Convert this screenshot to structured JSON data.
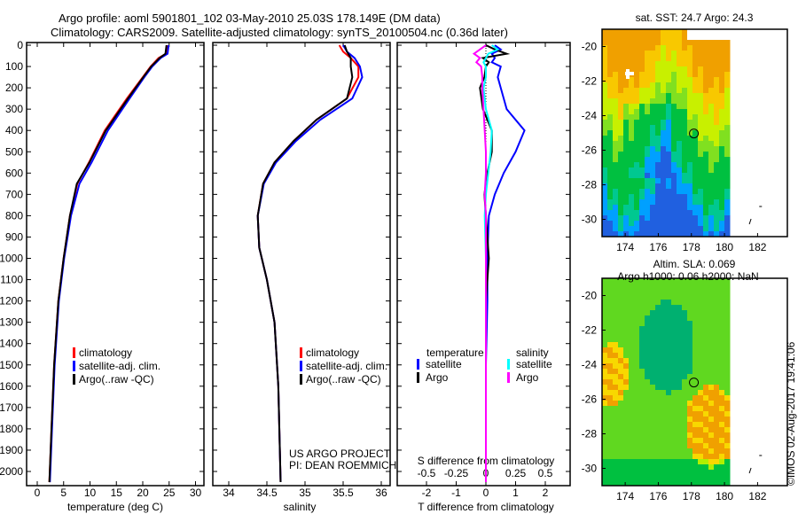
{
  "title": {
    "line1": "Argo profile: aoml 5901801_102 03-May-2010 25.03S 178.149E (DM data)",
    "line2": "Climatology: CARS2009. Satellite-adjusted climatology: synTS_20100504.nc (0.36d later)"
  },
  "colors": {
    "climatology": "#ff0000",
    "satellite": "#0000ff",
    "argo": "#000000",
    "sal_satellite": "#00ffff",
    "sal_argo": "#ff00ff"
  },
  "chart_data": [
    {
      "type": "line",
      "name": "temperature-profile",
      "xlabel": "temperature (deg C)",
      "ylabel": "",
      "xlim": [
        -2,
        32
      ],
      "ylim": [
        2050,
        0
      ],
      "xticks": [
        "0",
        "5",
        "10",
        "15",
        "20",
        "25",
        "30"
      ],
      "yticks": [
        "0",
        "100",
        "200",
        "300",
        "400",
        "500",
        "600",
        "700",
        "800",
        "900",
        "1000",
        "1100",
        "1200",
        "1300",
        "1400",
        "1500",
        "1600",
        "1700",
        "1800",
        "1900",
        "2000"
      ],
      "depth": [
        0,
        40,
        60,
        100,
        150,
        250,
        400,
        550,
        650,
        800,
        1000,
        1200,
        1500,
        1800,
        2050
      ],
      "series": [
        {
          "name": "climatology",
          "values": [
            24.6,
            24.4,
            23.0,
            21.5,
            20.0,
            17.0,
            12.8,
            9.8,
            7.6,
            6.2,
            5.0,
            4.0,
            3.2,
            2.7,
            2.3
          ]
        },
        {
          "name": "satellite-adj. clim.",
          "values": [
            24.9,
            24.7,
            23.4,
            21.8,
            20.3,
            17.5,
            13.4,
            10.3,
            8.0,
            6.4,
            5.1,
            4.1,
            3.3,
            2.8,
            2.4
          ]
        },
        {
          "name": "Argo(..raw -QC)",
          "values": [
            24.5,
            24.3,
            23.2,
            21.6,
            20.1,
            17.2,
            13.0,
            9.9,
            7.5,
            6.2,
            5.0,
            4.0,
            3.2,
            2.7,
            2.3
          ]
        }
      ],
      "legend": [
        "climatology",
        "satellite-adj. clim.",
        "Argo(..raw -QC)"
      ],
      "legend_placement": "center-right"
    },
    {
      "type": "line",
      "name": "salinity-profile",
      "xlabel": "salinity",
      "xlim": [
        33.7,
        36.2
      ],
      "ylim": [
        2050,
        0
      ],
      "xticks": [
        "34",
        "34.5",
        "35",
        "35.5",
        "36"
      ],
      "depth": [
        0,
        30,
        60,
        100,
        150,
        250,
        350,
        450,
        550,
        650,
        800,
        950,
        1100,
        1300,
        1600,
        2050
      ],
      "series": [
        {
          "name": "climatology",
          "values": [
            35.45,
            35.5,
            35.6,
            35.7,
            35.7,
            35.55,
            35.15,
            34.85,
            34.6,
            34.45,
            34.38,
            34.4,
            34.5,
            34.6,
            34.65,
            34.68
          ]
        },
        {
          "name": "satellite-adj. clim.",
          "values": [
            35.5,
            35.55,
            35.65,
            35.72,
            35.75,
            35.62,
            35.2,
            34.88,
            34.62,
            34.46,
            34.38,
            34.4,
            34.5,
            34.6,
            34.65,
            34.68
          ]
        },
        {
          "name": "Argo(..raw -QC)",
          "values": [
            35.52,
            35.55,
            35.6,
            35.6,
            35.62,
            35.55,
            35.15,
            34.85,
            34.6,
            34.45,
            34.38,
            34.4,
            34.5,
            34.6,
            34.65,
            34.68
          ]
        }
      ],
      "legend": [
        "climatology",
        "satellite-adj. clim.",
        "Argo(..raw -QC)"
      ],
      "annotation": [
        "US ARGO PROJECT",
        "PI: DEAN ROEMMICH"
      ]
    },
    {
      "type": "line",
      "name": "difference-profile",
      "xlabel": "T difference from climatology",
      "x2label": "S difference from climatology",
      "xlim": [
        -3,
        3
      ],
      "ylim": [
        2050,
        0
      ],
      "xticks": [
        "-2",
        "-1",
        "0",
        "1",
        "2"
      ],
      "x2ticks": [
        "-0.5",
        "-0.25",
        "0",
        "0.25",
        "0.5"
      ],
      "depth": [
        0,
        20,
        40,
        60,
        80,
        100,
        150,
        200,
        300,
        400,
        500,
        600,
        700,
        800,
        1000,
        1200,
        1500,
        2050
      ],
      "series": [
        {
          "name": "T satellite",
          "values": [
            0.3,
            0.5,
            0.2,
            0.3,
            0.2,
            0.5,
            0.4,
            0.5,
            0.7,
            1.3,
            1.0,
            0.6,
            0.3,
            0.1,
            0.05,
            0.05,
            0.0,
            0.0
          ]
        },
        {
          "name": "T Argo",
          "values": [
            0.0,
            0.3,
            0.7,
            -0.1,
            0.1,
            0.0,
            -0.05,
            -0.2,
            -0.1,
            0.2,
            0.2,
            0.05,
            -0.05,
            0.0,
            0.1,
            0.0,
            0.0,
            0.0
          ]
        },
        {
          "name": "S satellite",
          "values": [
            0.05,
            0.1,
            0.02,
            0.0,
            -0.02,
            0.0,
            0.0,
            -0.02,
            0.0,
            0.05,
            0.04,
            0.02,
            0.0,
            -0.01,
            0.0,
            0.0,
            0.0,
            0.0
          ]
        },
        {
          "name": "S Argo",
          "values": [
            0.0,
            -0.05,
            -0.1,
            -0.05,
            -0.08,
            -0.04,
            -0.03,
            -0.03,
            -0.02,
            -0.01,
            0.0,
            0.0,
            -0.01,
            0.0,
            0.0,
            0.0,
            0.0,
            0.0
          ]
        }
      ],
      "legend": {
        "temperature": "temperature",
        "salinity": "salinity",
        "items": [
          "satellite",
          "Argo",
          "satellite",
          "Argo"
        ]
      }
    },
    {
      "type": "heatmap",
      "name": "sst-map",
      "title": "sat. SST: 24.7 Argo: 24.3",
      "xticks": [
        "174",
        "176",
        "178",
        "180",
        "182"
      ],
      "yticks": [
        "-20",
        "-22",
        "-24",
        "-26",
        "-28",
        "-30"
      ],
      "xlim": [
        172.6,
        183.8
      ],
      "ylim": [
        -31,
        -19
      ]
    },
    {
      "type": "heatmap",
      "name": "sla-map",
      "title": [
        "Altim. SLA: 0.069",
        "Argo h1000: 0.06 h2000: NaN"
      ],
      "xticks": [
        "174",
        "176",
        "178",
        "180",
        "182"
      ],
      "yticks": [
        "-20",
        "-22",
        "-24",
        "-26",
        "-28",
        "-30"
      ],
      "xlim": [
        172.6,
        183.8
      ],
      "ylim": [
        -31,
        -19
      ]
    }
  ],
  "footer": "©IMOS 02-Aug-2017 19:41:06"
}
